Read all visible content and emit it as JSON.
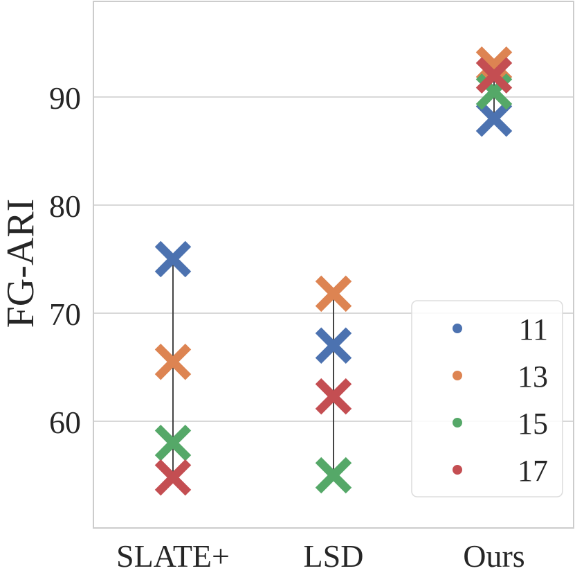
{
  "chart_data": {
    "type": "scatter",
    "ylabel": "FG-ARI",
    "categories": [
      "SLATE+",
      "LSD",
      "Ours"
    ],
    "ylim": [
      50,
      100
    ],
    "yticks": [
      60,
      70,
      80,
      90
    ],
    "grid": true,
    "legend_position": "bottom-right",
    "series": [
      {
        "name": "11",
        "color": "#4c72b0",
        "values": [
          75.0,
          67.0,
          88.0
        ]
      },
      {
        "name": "13",
        "color": "#dd8452",
        "values": [
          65.5,
          71.8,
          93.0
        ]
      },
      {
        "name": "15",
        "color": "#55a868",
        "values": [
          58.0,
          55.0,
          90.5
        ]
      },
      {
        "name": "17",
        "color": "#c44e52",
        "values": [
          54.8,
          62.3,
          92.0
        ]
      }
    ]
  }
}
